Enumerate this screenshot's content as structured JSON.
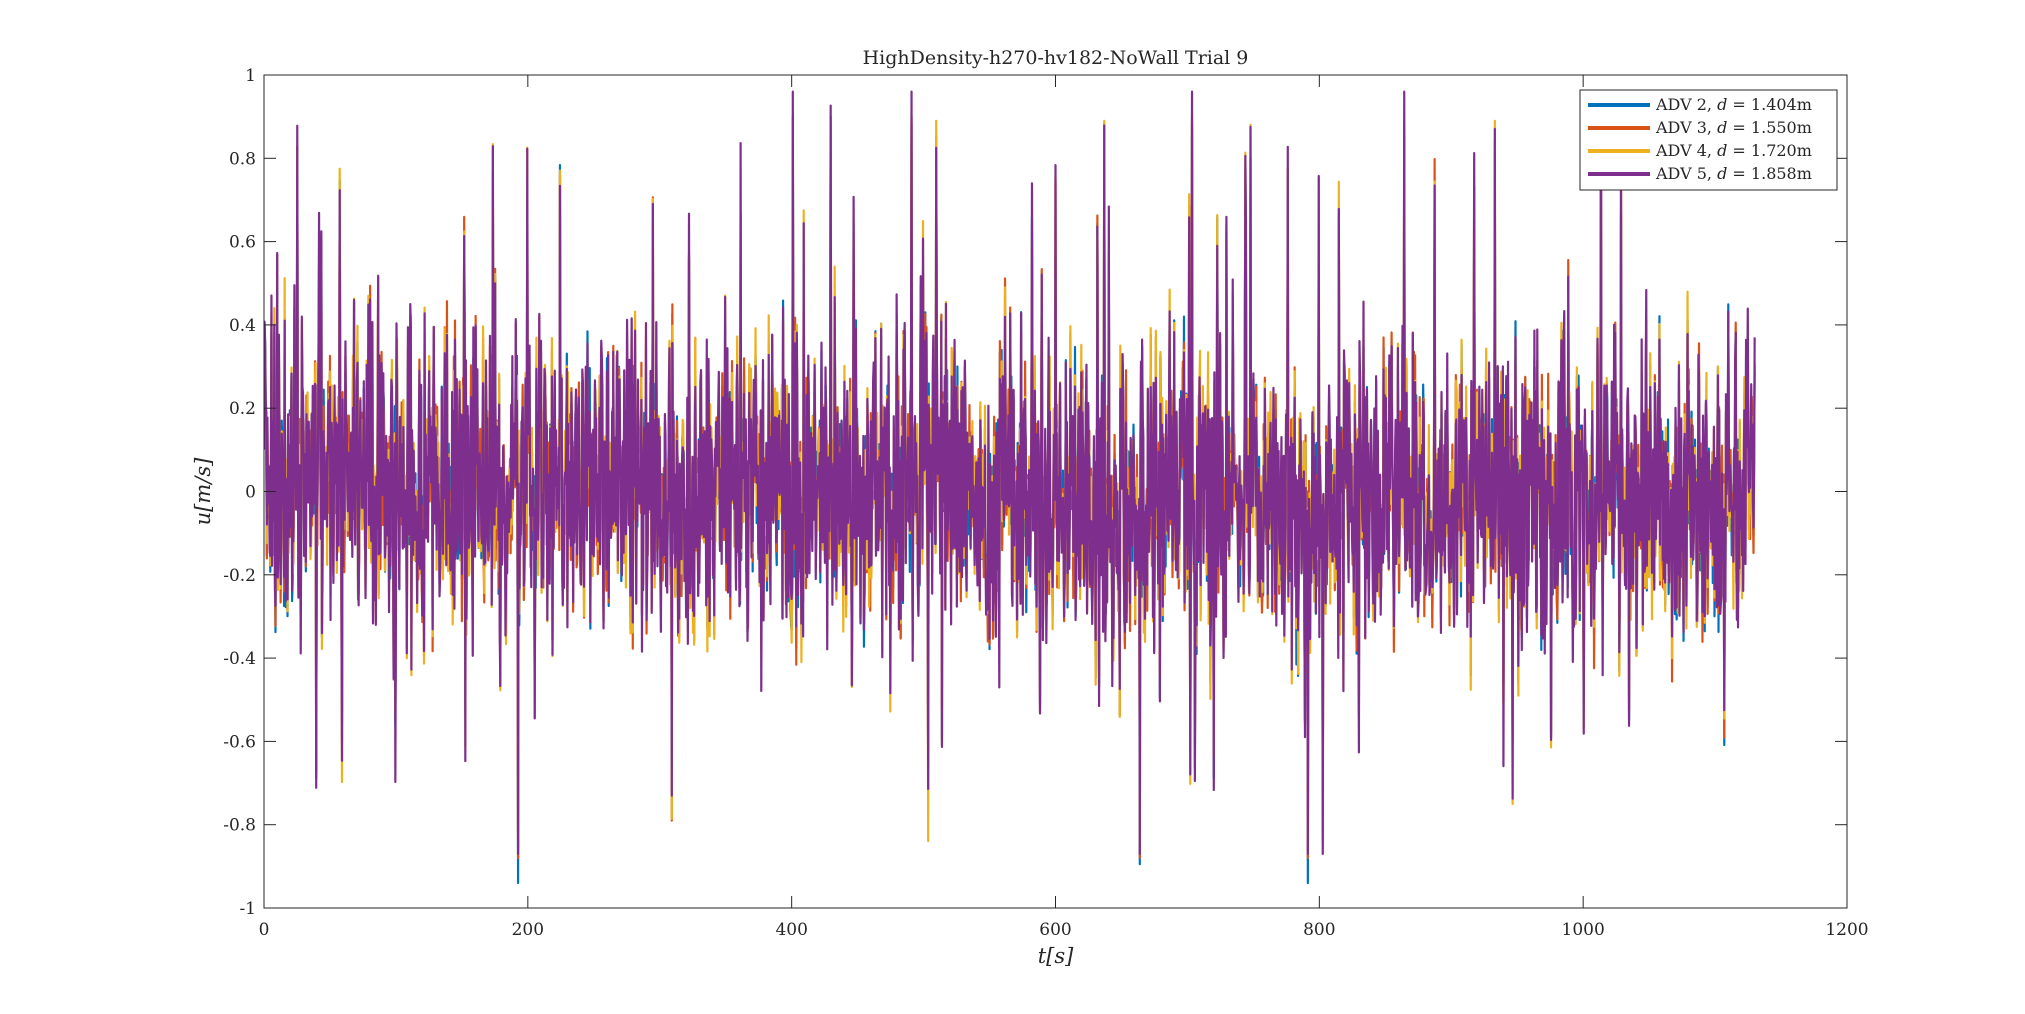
{
  "chart_data": {
    "type": "line",
    "title": "HighDensity-h270-hv182-NoWall Trial 9",
    "xlabel": "t[s]",
    "ylabel": "u[m/s]",
    "xlim": [
      0,
      1200
    ],
    "ylim": [
      -1,
      1
    ],
    "xticks": [
      "0",
      "200",
      "400",
      "600",
      "800",
      "1000",
      "1200"
    ],
    "yticks": [
      "1",
      "0.8",
      "0.6",
      "0.4",
      "0.2",
      "0",
      "-0.2",
      "-0.4",
      "-0.6",
      "-0.8",
      "-1"
    ],
    "grid": false,
    "legend_position": "top-right",
    "x_extent": [
      0,
      1130
    ],
    "series": [
      {
        "name": "ADV 2, d = 1.404m",
        "label_prefix": "ADV 2, ",
        "label_var": "d",
        "label_rest": " = 1.404m",
        "color": "#0072BD",
        "peak_max": 0.88,
        "peak_min": -0.94
      },
      {
        "name": "ADV 3, d = 1.550m",
        "label_prefix": "ADV 3, ",
        "label_var": "d",
        "label_rest": " = 1.550m",
        "color": "#D95319",
        "peak_max": 0.9,
        "peak_min": -0.88
      },
      {
        "name": "ADV 4, d = 1.720m",
        "label_prefix": "ADV 4, ",
        "label_var": "d",
        "label_rest": " = 1.720m",
        "color": "#EDB120",
        "peak_max": 0.89,
        "peak_min": -0.84
      },
      {
        "name": "ADV 5, d = 1.858m",
        "label_prefix": "ADV 5, ",
        "label_var": "d",
        "label_rest": " = 1.858m",
        "color": "#7E2F8E",
        "peak_max": 0.96,
        "peak_min": -0.87
      }
    ]
  }
}
